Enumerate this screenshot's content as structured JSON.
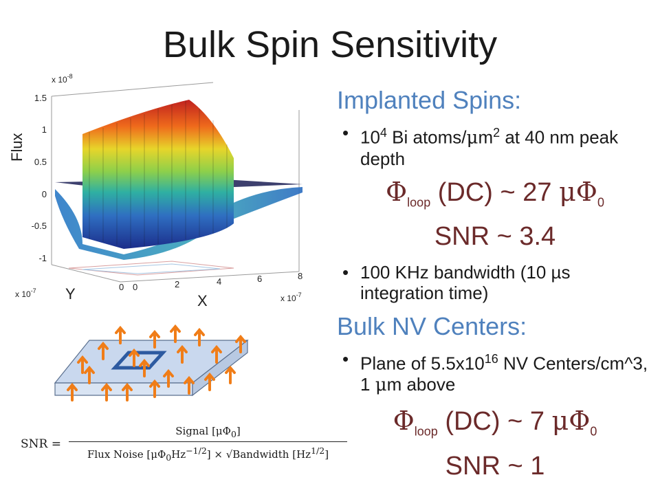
{
  "title": "Bulk Spin Sensitivity",
  "implanted": {
    "heading": "Implanted Spins:",
    "bullet1": [
      "10",
      "4",
      " Bi atoms/",
      "μ",
      "m",
      "2",
      " at 40 nm peak depth"
    ],
    "flux_label": [
      "Φ",
      "loop",
      " (DC) ~ 27 ",
      "μΦ",
      "0"
    ],
    "snr": "SNR ~ 3.4",
    "bullet2": "100 KHz bandwidth (10 µs integration time)"
  },
  "bulk": {
    "heading": "Bulk NV Centers:",
    "bullet1": [
      "Plane of 5.5x10",
      "16",
      " NV Centers/cm^3, 1 ",
      "μ",
      "m above"
    ],
    "flux_label": [
      "Φ",
      "loop",
      " (DC) ~ 7 ",
      "μΦ",
      "0"
    ],
    "snr": "SNR ~ 1"
  },
  "plot": {
    "z_label": "Flux",
    "z_exponent": "x 10",
    "z_exponent_power": "-8",
    "z_ticks": [
      "1.5",
      "1",
      "0.5",
      "0",
      "-0.5",
      "-1"
    ],
    "y_label": "Y",
    "y_exponent": "x 10",
    "y_exponent_power": "-7",
    "y_tick": "0",
    "x_label": "X",
    "x_exponent": "x 10",
    "x_exponent_power": "-7",
    "x_ticks": [
      "0",
      "2",
      "4",
      "6",
      "8"
    ]
  },
  "formula": {
    "lhs": "SNR =",
    "numerator": "Signal [μΦ",
    "numerator_sub": "0",
    "numerator_end": "]",
    "denominator": "Flux Noise [μΦ",
    "denominator_sub": "0",
    "denominator_mid": "Hz",
    "denominator_exp": "−1/2",
    "denominator_end": "] × √Bandwidth [Hz",
    "denominator_exp2": "1/2",
    "denominator_end2": "]"
  },
  "colors": {
    "heading": "#4f81bd",
    "emphasis": "#6b2a2a",
    "arrow": "#f07d18",
    "plate_top": "#c9d8ee",
    "plate_side": "#d9e4f3",
    "loop": "#2d5aa0"
  }
}
